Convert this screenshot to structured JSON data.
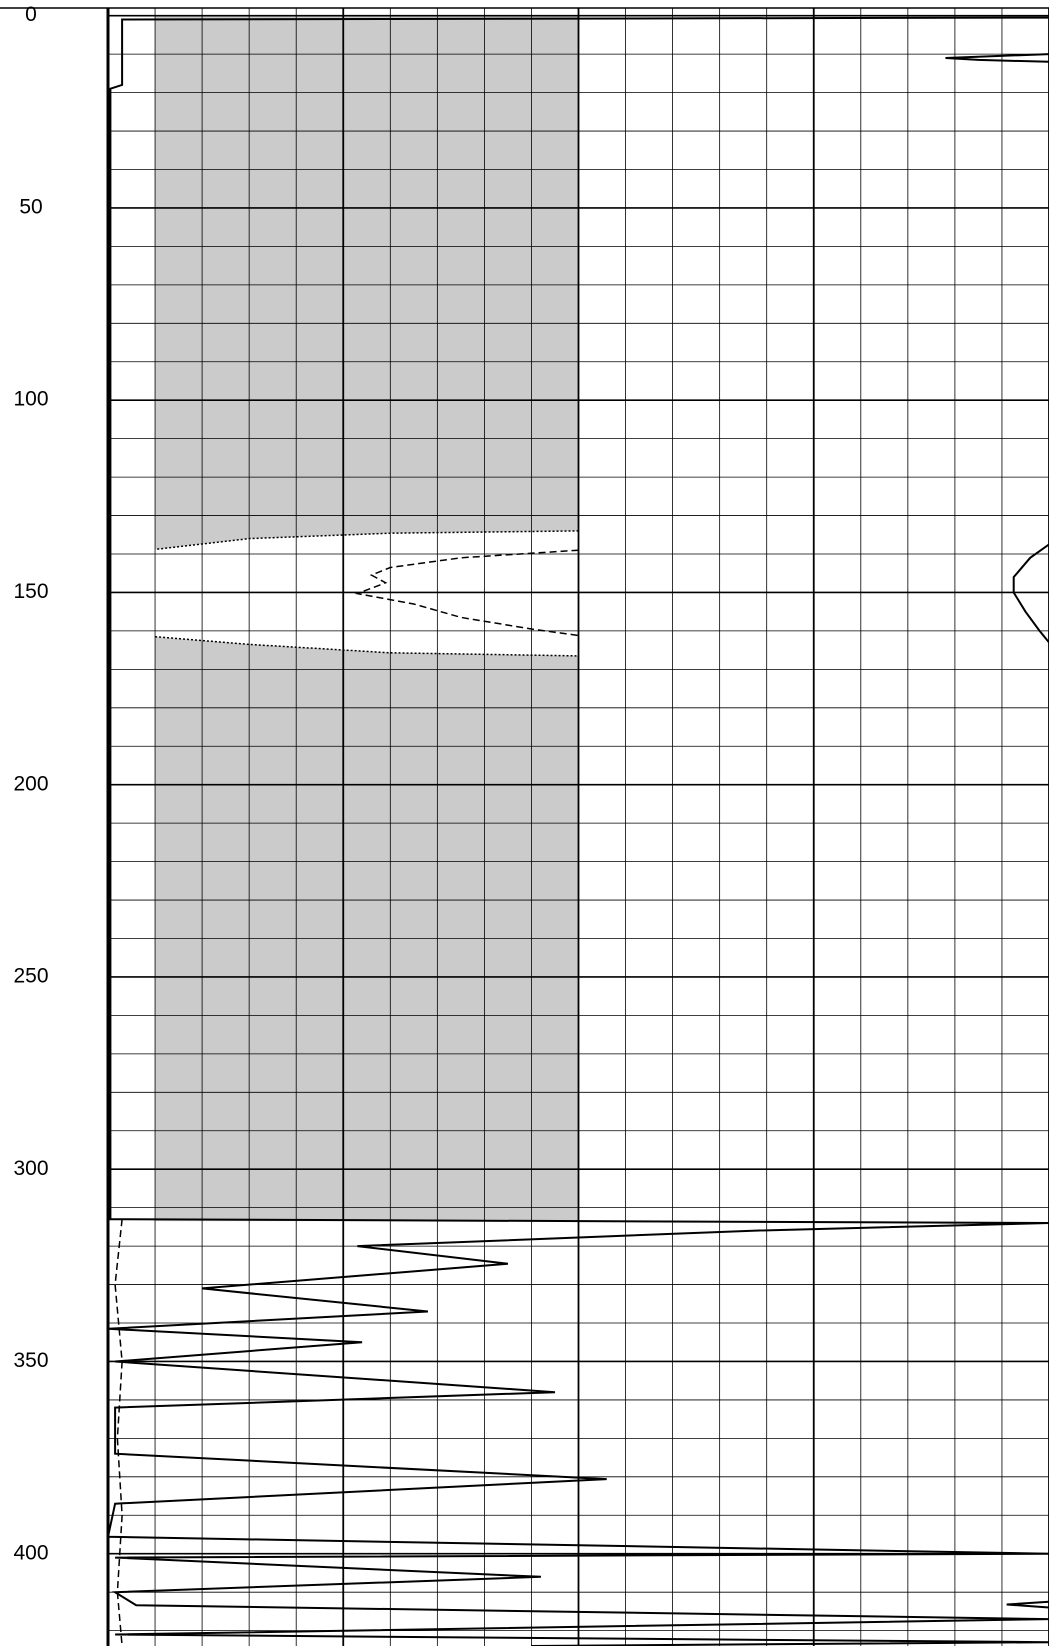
{
  "chart_data": {
    "type": "line",
    "ylim": [
      -2,
      424
    ],
    "yticks": [
      0,
      50,
      100,
      150,
      200,
      250,
      300,
      350,
      400
    ],
    "yminorticks": [
      10,
      20,
      30,
      40,
      60,
      70,
      80,
      90,
      110,
      120,
      130,
      140,
      160,
      170,
      180,
      190,
      210,
      220,
      230,
      240,
      260,
      270,
      280,
      290,
      310,
      320,
      330,
      340,
      360,
      370,
      380,
      390,
      410,
      420
    ],
    "y_inverted": true,
    "xlim": [
      0,
      20
    ],
    "xticks": [
      0,
      1,
      2,
      3,
      4,
      5,
      6,
      7,
      8,
      9,
      10,
      11,
      12,
      13,
      14,
      15,
      16,
      17,
      18,
      19,
      20
    ],
    "grid": true,
    "series": [
      {
        "fill": true,
        "color": "#a9a9a9",
        "depth": [
          0,
          0,
          18,
          18
        ],
        "values": [
          1,
          10,
          10,
          1
        ]
      },
      {
        "fill": true,
        "color": "#cbcbcb",
        "depth": [
          0,
          0,
          134,
          134.6,
          136,
          138.8
        ],
        "values": [
          1,
          10,
          10,
          6,
          3,
          1
        ]
      },
      {
        "fill": true,
        "color": "#cbcbcb",
        "depth": [
          161.5,
          163.5,
          165.7,
          166.5,
          313.5,
          313.5
        ],
        "values": [
          1,
          3,
          6,
          10,
          10,
          1
        ]
      },
      {
        "fill": false,
        "color": "#000000",
        "dash": "dotted",
        "depth": [
          134,
          134.6,
          136,
          138.8
        ],
        "values": [
          10,
          6,
          3,
          1
        ]
      },
      {
        "fill": false,
        "color": "#000000",
        "dash": "dotted",
        "depth": [
          161.5,
          163.5,
          165.7,
          166.5
        ],
        "values": [
          1,
          3,
          6,
          10
        ]
      },
      {
        "fill": false,
        "color": "#000000",
        "dash": "dashed",
        "depth": [
          139,
          141,
          143.5,
          145.5,
          147.5,
          150.3,
          153,
          156.5,
          159.5,
          161.2
        ],
        "values": [
          10,
          7.5,
          6,
          5.6,
          5.9,
          5.3,
          6.5,
          7.5,
          9,
          10
        ]
      },
      {
        "fill": false,
        "color": "#000000",
        "dash": "solid",
        "depth": [
          0.5,
          1,
          18,
          19,
          313,
          314,
          316,
          320,
          324.6,
          331,
          337,
          341.5,
          345,
          350,
          358,
          362,
          374,
          380.6,
          387,
          395.6,
          400,
          401,
          406,
          410,
          413.4,
          417,
          421,
          423,
          424
        ],
        "values": [
          20,
          0.3,
          0.3,
          0.05,
          0.05,
          20,
          13.7,
          5.3,
          8.5,
          2,
          6.8,
          0,
          5.4,
          0.15,
          9.5,
          0.15,
          0.15,
          10.6,
          0.15,
          0,
          20,
          0.15,
          9.2,
          0.15,
          0.6,
          20,
          0.15,
          20,
          9
        ]
      },
      {
        "fill": false,
        "color": "#000000",
        "dash": "dashed",
        "depth": [
          313,
          330,
          350,
          370,
          390,
          410,
          424
        ],
        "values": [
          0.3,
          0.15,
          0.3,
          0.2,
          0.3,
          0.2,
          0.3
        ]
      },
      {
        "fill": false,
        "color": "#000000",
        "dash": "solid",
        "depth": [
          137.5,
          141,
          146,
          150,
          155,
          160,
          163
        ],
        "values": [
          20,
          19.6,
          19.25,
          19.25,
          19.5,
          19.8,
          20
        ]
      },
      {
        "fill": false,
        "color": "#000000",
        "dash": "solid",
        "depth": [
          10,
          11,
          11.5,
          12
        ],
        "values": [
          20,
          17.8,
          18.5,
          20
        ]
      },
      {
        "fill": false,
        "color": "#000000",
        "dash": "solid",
        "depth": [
          412.5,
          413.2,
          414
        ],
        "values": [
          20,
          19.1,
          20
        ]
      }
    ]
  }
}
